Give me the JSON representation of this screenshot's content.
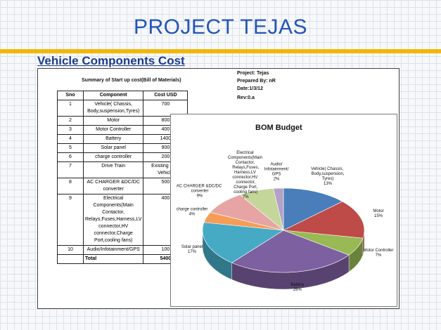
{
  "title": "PROJECT TEJAS",
  "subtitle": "Vehicle Components Cost",
  "sheet": {
    "summary": "Summary of Start up cost(Bill of Materials)",
    "project": "Project: Tejas",
    "prepared": "Prepared By: nR",
    "date": "Date:1/3/12",
    "rev": "Rev:0.a"
  },
  "table": {
    "headers": [
      "Sno",
      "Component",
      "Cost USD"
    ],
    "rows": [
      [
        "1",
        "Vehicle( Chassis, Body,suspension,Tyres)",
        "700"
      ],
      [
        "2",
        "Motor",
        "800"
      ],
      [
        "3",
        "Motor Controller",
        "400"
      ],
      [
        "4",
        "Battery",
        "1400"
      ],
      [
        "5",
        "Solar panel",
        "900"
      ],
      [
        "6",
        "charge controller",
        "200"
      ],
      [
        "7",
        "Drive Train",
        "Existing from Vehicle"
      ],
      [
        "8",
        "AC CHARGER &DC/DC converter",
        "500"
      ],
      [
        "9",
        "Electrical Components(Main Contactor, Relays,Fuses,Harness,LV connector,HV connector,Charge Port,cooling fans)",
        "400"
      ],
      [
        "10",
        "Audio/Infotainment/GPS",
        "100"
      ]
    ],
    "total_label": "Total",
    "total_value": "5400"
  },
  "chart_data": {
    "type": "pie",
    "title": "BOM Budget",
    "slices": [
      {
        "label": "Vehicle( Chassis, Body,suspension,Tyres)",
        "value": 13,
        "color": "#4a7ebb"
      },
      {
        "label": "Motor",
        "value": 15,
        "color": "#be4b48"
      },
      {
        "label": "Motor Controller",
        "value": 7,
        "color": "#98b954"
      },
      {
        "label": "Battery",
        "value": 26,
        "color": "#7d60a0"
      },
      {
        "label": "Solar panel",
        "value": 17,
        "color": "#46aac5"
      },
      {
        "label": "charge controller",
        "value": 4,
        "color": "#f59d56"
      },
      {
        "label": "AC CHARGER &DC/DC converter",
        "value": 9,
        "color": "#e6a5a4"
      },
      {
        "label": "Electrical Components(Main Contactor, Relays,Fuses,Harness,LV connector,HV connector,Charge Port,cooling fans)",
        "value": 7,
        "color": "#c5d69b"
      },
      {
        "label": "Audio/Infotainment/GPS",
        "value": 2,
        "color": "#b3a2c7"
      }
    ],
    "data_labels": [
      "13%",
      "15%",
      "7%",
      "26%",
      "17%",
      "4%",
      "9%",
      "7%",
      "2%"
    ]
  }
}
